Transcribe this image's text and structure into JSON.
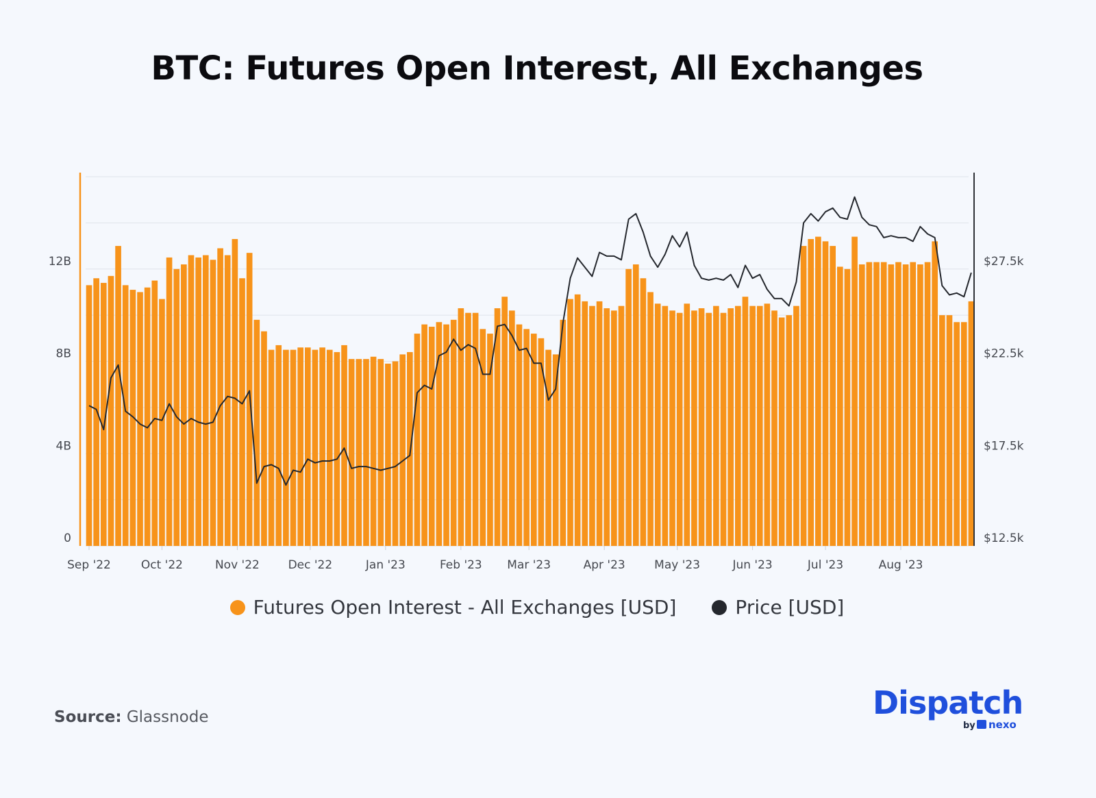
{
  "title": "BTC: Futures Open Interest, All Exchanges",
  "source": {
    "label": "Source:",
    "value": "Glassnode"
  },
  "logo": {
    "brand": "Dispatch",
    "by": "by",
    "partner": "nexo",
    "color": "#1f4fdc"
  },
  "legend": [
    {
      "label": "Futures Open Interest - All Exchanges [USD]",
      "color": "#f7931a"
    },
    {
      "label": "Price [USD]",
      "color": "#24272d"
    }
  ],
  "chart_data": {
    "type": "bar+line",
    "title": "BTC: Futures Open Interest, All Exchanges",
    "grid": true,
    "legend_position": "bottom",
    "x_start": "2022-09-01",
    "x_step_days": 3,
    "x_ticks": [
      {
        "date": "2022-09-01",
        "label": "Sep '22"
      },
      {
        "date": "2022-10-01",
        "label": "Oct '22"
      },
      {
        "date": "2022-11-01",
        "label": "Nov '22"
      },
      {
        "date": "2022-12-01",
        "label": "Dec '22"
      },
      {
        "date": "2023-01-01",
        "label": "Jan '23"
      },
      {
        "date": "2023-02-01",
        "label": "Feb '23"
      },
      {
        "date": "2023-03-01",
        "label": "Mar '23"
      },
      {
        "date": "2023-04-01",
        "label": "Apr '23"
      },
      {
        "date": "2023-05-01",
        "label": "May '23"
      },
      {
        "date": "2023-06-01",
        "label": "Jun '23"
      },
      {
        "date": "2023-07-01",
        "label": "Jul '23"
      },
      {
        "date": "2023-08-01",
        "label": "Aug '23"
      }
    ],
    "y_left": {
      "range": [
        0,
        16.2
      ],
      "unit": "B USD",
      "ticks": [
        {
          "v": 0,
          "label": "0"
        },
        {
          "v": 4,
          "label": "4B"
        },
        {
          "v": 8,
          "label": "8B"
        },
        {
          "v": 12,
          "label": "12B"
        }
      ],
      "gridlines": [
        0,
        2,
        4,
        6,
        8,
        10,
        12,
        14,
        16
      ]
    },
    "y_right": {
      "range": [
        12.5,
        32.75
      ],
      "unit": "k USD",
      "ticks": [
        {
          "v": 12.5,
          "label": "$12.5k"
        },
        {
          "v": 17.5,
          "label": "$17.5k"
        },
        {
          "v": 22.5,
          "label": "$22.5k"
        },
        {
          "v": 27.5,
          "label": "$27.5k"
        }
      ]
    },
    "series": [
      {
        "name": "Futures Open Interest - All Exchanges [USD]",
        "type": "bar",
        "axis": "left",
        "color": "#f7931a",
        "values": [
          11.3,
          11.6,
          11.4,
          11.7,
          13.0,
          11.3,
          11.1,
          11.0,
          11.2,
          11.5,
          10.7,
          12.5,
          12.0,
          12.2,
          12.6,
          12.5,
          12.6,
          12.4,
          12.9,
          12.6,
          13.3,
          11.6,
          12.7,
          9.8,
          9.3,
          8.5,
          8.7,
          8.5,
          8.5,
          8.6,
          8.6,
          8.5,
          8.6,
          8.5,
          8.4,
          8.7,
          8.1,
          8.1,
          8.1,
          8.2,
          8.1,
          7.9,
          8.0,
          8.3,
          8.4,
          9.2,
          9.6,
          9.5,
          9.7,
          9.6,
          9.8,
          10.3,
          10.1,
          10.1,
          9.4,
          9.2,
          10.3,
          10.8,
          10.2,
          9.6,
          9.4,
          9.2,
          9.0,
          8.5,
          8.3,
          9.8,
          10.7,
          10.9,
          10.6,
          10.4,
          10.6,
          10.3,
          10.2,
          10.4,
          12.0,
          12.2,
          11.6,
          11.0,
          10.5,
          10.4,
          10.2,
          10.1,
          10.5,
          10.2,
          10.3,
          10.1,
          10.4,
          10.1,
          10.3,
          10.4,
          10.8,
          10.4,
          10.4,
          10.5,
          10.2,
          9.9,
          10.0,
          10.4,
          13.0,
          13.3,
          13.4,
          13.2,
          13.0,
          12.1,
          12.0,
          13.4,
          12.2,
          12.3,
          12.3,
          12.3,
          12.2,
          12.3,
          12.2,
          12.3,
          12.2,
          12.3,
          13.2,
          10.0,
          10.0,
          9.7,
          9.7,
          10.6
        ]
      },
      {
        "name": "Price [USD]",
        "type": "line",
        "axis": "right",
        "color": "#24272d",
        "values": [
          20.1,
          19.9,
          18.8,
          21.6,
          22.3,
          19.8,
          19.5,
          19.1,
          18.9,
          19.4,
          19.3,
          20.2,
          19.5,
          19.1,
          19.4,
          19.2,
          19.1,
          19.2,
          20.1,
          20.6,
          20.5,
          20.2,
          20.9,
          15.9,
          16.8,
          16.9,
          16.7,
          15.8,
          16.6,
          16.5,
          17.2,
          17.0,
          17.1,
          17.1,
          17.2,
          17.8,
          16.7,
          16.8,
          16.8,
          16.7,
          16.6,
          16.7,
          16.8,
          17.1,
          17.4,
          20.8,
          21.2,
          21.0,
          22.8,
          23.0,
          23.7,
          23.1,
          23.4,
          23.2,
          21.8,
          21.8,
          24.4,
          24.5,
          23.9,
          23.1,
          23.2,
          22.4,
          22.4,
          20.4,
          21.0,
          24.6,
          27.0,
          28.1,
          27.6,
          27.1,
          28.4,
          28.2,
          28.2,
          28.0,
          30.2,
          30.5,
          29.5,
          28.2,
          27.6,
          28.3,
          29.3,
          28.7,
          29.5,
          27.7,
          27.0,
          26.9,
          27.0,
          26.9,
          27.2,
          26.5,
          27.7,
          27.0,
          27.2,
          26.4,
          25.9,
          25.9,
          25.5,
          26.8,
          30.0,
          30.5,
          30.1,
          30.6,
          30.8,
          30.3,
          30.2,
          31.4,
          30.3,
          29.9,
          29.8,
          29.2,
          29.3,
          29.2,
          29.2,
          29.0,
          29.8,
          29.4,
          29.2,
          26.6,
          26.1,
          26.2,
          26.0,
          27.3
        ]
      }
    ]
  }
}
